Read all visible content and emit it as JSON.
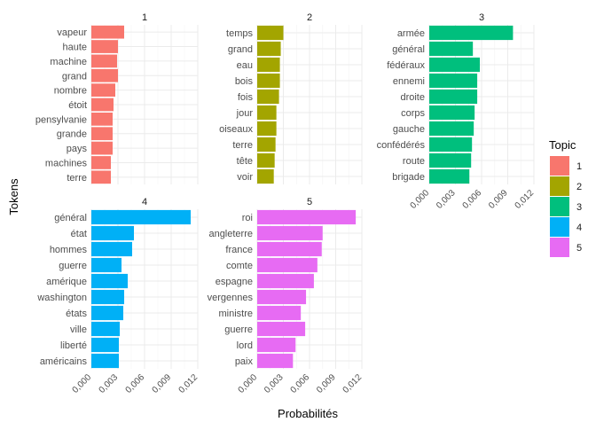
{
  "chart_data": {
    "type": "bar",
    "orientation": "horizontal",
    "faceted": true,
    "xlabel": "Probabilités",
    "ylabel": "Tokens",
    "xlim": [
      0,
      0.012
    ],
    "xticks": [
      "0,000",
      "0,003",
      "0,006",
      "0,009",
      "0,012"
    ],
    "tick_values": [
      0,
      0.003,
      0.006,
      0.009,
      0.012
    ],
    "grid": true,
    "legend": {
      "title": "Topic",
      "placement": "right",
      "items": [
        {
          "label": "1",
          "color": "#F8766D"
        },
        {
          "label": "2",
          "color": "#A3A500"
        },
        {
          "label": "3",
          "color": "#00BF7D"
        },
        {
          "label": "4",
          "color": "#00B0F6"
        },
        {
          "label": "5",
          "color": "#E76BF3"
        }
      ]
    },
    "facets": [
      {
        "title": "1",
        "color": "#F8766D",
        "categories": [
          "vapeur",
          "haute",
          "machine",
          "grand",
          "nombre",
          "étoit",
          "pensylvanie",
          "grande",
          "pays",
          "machines",
          "terre"
        ],
        "values": [
          0.0037,
          0.003,
          0.0029,
          0.003,
          0.0027,
          0.0025,
          0.0024,
          0.0024,
          0.0024,
          0.0022,
          0.0022
        ]
      },
      {
        "title": "2",
        "color": "#A3A500",
        "categories": [
          "temps",
          "grand",
          "eau",
          "bois",
          "fois",
          "jour",
          "oiseaux",
          "terre",
          "tête",
          "voir"
        ],
        "values": [
          0.003,
          0.0027,
          0.0026,
          0.0026,
          0.0025,
          0.0022,
          0.0022,
          0.0021,
          0.002,
          0.0019
        ]
      },
      {
        "title": "3",
        "color": "#00BF7D",
        "categories": [
          "armée",
          "général",
          "fédéraux",
          "ennemi",
          "droite",
          "corps",
          "gauche",
          "confédérés",
          "route",
          "brigade"
        ],
        "values": [
          0.0096,
          0.005,
          0.0058,
          0.0055,
          0.0055,
          0.0052,
          0.0051,
          0.0049,
          0.0048,
          0.0046
        ]
      },
      {
        "title": "4",
        "color": "#00B0F6",
        "categories": [
          "général",
          "état",
          "hommes",
          "guerre",
          "amérique",
          "washington",
          "états",
          "ville",
          "liberté",
          "américains"
        ],
        "values": [
          0.0112,
          0.0048,
          0.0046,
          0.0034,
          0.0041,
          0.0037,
          0.0036,
          0.0032,
          0.0031,
          0.0031
        ]
      },
      {
        "title": "5",
        "color": "#E76BF3",
        "categories": [
          "roi",
          "angleterre",
          "france",
          "comte",
          "espagne",
          "vergennes",
          "ministre",
          "guerre",
          "lord",
          "paix"
        ],
        "values": [
          0.0113,
          0.0075,
          0.0074,
          0.0069,
          0.0065,
          0.0056,
          0.005,
          0.0055,
          0.0044,
          0.0041
        ]
      }
    ]
  }
}
